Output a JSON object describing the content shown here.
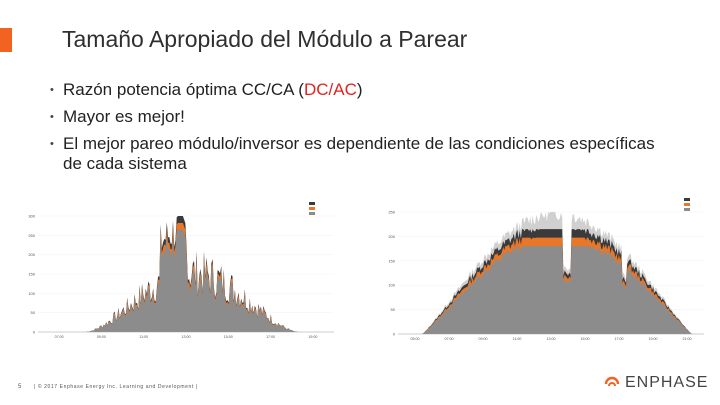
{
  "title": "Tamaño Apropiado del Módulo a Parear",
  "bullets": [
    {
      "pre": "Razón potencia óptima CC/CA (",
      "highlight": "DC/AC",
      "post": ")"
    },
    {
      "pre": "Mayor es mejor!",
      "highlight": "",
      "post": ""
    },
    {
      "pre": "El mejor pareo módulo/inversor es dependiente de las condiciones específicas de cada sistema",
      "highlight": "",
      "post": ""
    }
  ],
  "colors": {
    "accent": "#f26322",
    "highlight": "#e0241f",
    "series_gray": "#8c8c8c",
    "series_orange": "#e8772a",
    "series_dark": "#3a3a3a",
    "series_light": "#d0d0d0"
  },
  "footer": {
    "page_number": "5",
    "text": "| © 2017 Enphase Energy Inc.  Learning and Development |",
    "logo": "ENPHASE",
    "logo_icon": "enphase-arc-icon"
  },
  "chart_data": [
    {
      "type": "area",
      "title": "",
      "yticks": [
        "0",
        "50",
        "100",
        "150",
        "200",
        "250",
        "300"
      ],
      "xticks": [
        "07:00",
        "09:00",
        "11:00",
        "13:00",
        "15:00",
        "17:00",
        "19:00"
      ],
      "ylim": [
        0,
        300
      ],
      "legend_placement": "top-right",
      "series": [
        {
          "color": "#3a3a3a"
        },
        {
          "color": "#e8772a"
        },
        {
          "color": "#8c8c8c"
        }
      ]
    },
    {
      "type": "area",
      "title": "",
      "yticks": [
        "0",
        "50",
        "100",
        "150",
        "200",
        "250"
      ],
      "xticks": [
        "05:00",
        "07:00",
        "09:00",
        "11:00",
        "13:00",
        "15:00",
        "17:00",
        "19:00",
        "21:00"
      ],
      "ylim": [
        0,
        250
      ],
      "legend_placement": "top-right",
      "series": [
        {
          "color": "#d0d0d0"
        },
        {
          "color": "#3a3a3a"
        },
        {
          "color": "#e8772a"
        },
        {
          "color": "#8c8c8c"
        }
      ]
    }
  ]
}
